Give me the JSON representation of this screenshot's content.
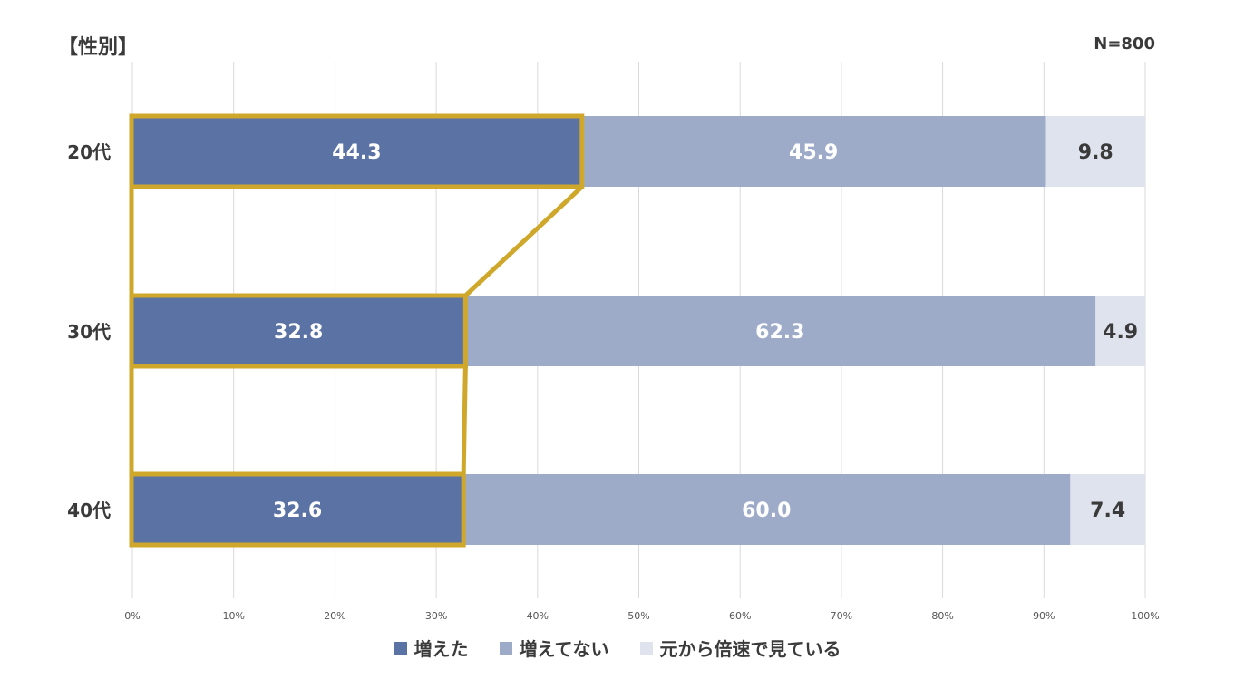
{
  "title": "【性別】",
  "note": "N=800",
  "chart_data": {
    "type": "bar",
    "orientation": "horizontal",
    "stacked": true,
    "categories": [
      "20代",
      "30代",
      "40代"
    ],
    "series": [
      {
        "name": "増えた",
        "values": [
          44.3,
          32.8,
          32.6
        ],
        "color": "#5a72a4",
        "label_color": "#ffffff"
      },
      {
        "name": "増えてない",
        "values": [
          45.9,
          62.3,
          60.0
        ],
        "color": "#9dabc9",
        "label_color": "#ffffff"
      },
      {
        "name": "元から倍速で見ている",
        "values": [
          9.8,
          4.9,
          7.4
        ],
        "color": "#dfe3ee",
        "label_color": "#3a3a3a"
      }
    ],
    "x_ticks": [
      "0%",
      "10%",
      "20%",
      "30%",
      "40%",
      "50%",
      "60%",
      "70%",
      "80%",
      "90%",
      "100%"
    ],
    "xlim": [
      0,
      100
    ],
    "grid": true,
    "legend_position": "bottom",
    "highlight": {
      "series": "増えた",
      "color": "#cfa82b"
    }
  }
}
